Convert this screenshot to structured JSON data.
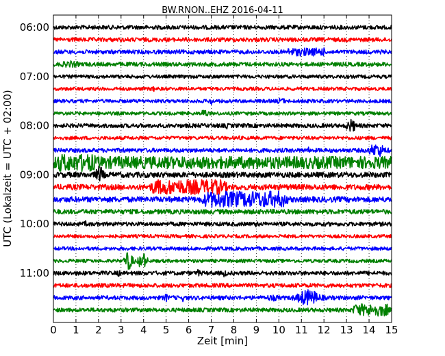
{
  "chart_data": {
    "type": "line",
    "title": "BW.RNON..EHZ 2016-04-11",
    "xlabel": "Zeit  [min]",
    "ylabel": "UTC (Lokalzeit = UTC + 02:00)",
    "xlim": [
      0,
      15
    ],
    "x_ticks": [
      "0",
      "1",
      "2",
      "3",
      "4",
      "5",
      "6",
      "7",
      "8",
      "9",
      "10",
      "11",
      "12",
      "13",
      "14",
      "15"
    ],
    "y_ticks": [
      "06:00",
      "07:00",
      "08:00",
      "09:00",
      "10:00",
      "11:00"
    ],
    "grid": "vertical dotted",
    "trace_color_cycle": [
      "#000000",
      "#ff0000",
      "#0000ff",
      "#008000"
    ],
    "rows": [
      {
        "start": "06:00",
        "base_amp": 3,
        "events": []
      },
      {
        "start": "06:15",
        "base_amp": 3,
        "events": []
      },
      {
        "start": "06:30",
        "base_amp": 3,
        "events": [
          {
            "from": 10.2,
            "to": 12.2,
            "amp": 6
          }
        ]
      },
      {
        "start": "06:45",
        "base_amp": 3,
        "events": [
          {
            "from": 0.0,
            "to": 1.5,
            "amp": 5
          }
        ]
      },
      {
        "start": "07:00",
        "base_amp": 2.5,
        "events": []
      },
      {
        "start": "07:15",
        "base_amp": 2.5,
        "events": [
          {
            "from": 4.2,
            "to": 4.7,
            "amp": 4
          }
        ]
      },
      {
        "start": "07:30",
        "base_amp": 2.5,
        "events": [
          {
            "from": 6.9,
            "to": 7.1,
            "amp": 7
          },
          {
            "from": 9.8,
            "to": 10.4,
            "amp": 5
          },
          {
            "from": 10.9,
            "to": 11.1,
            "amp": 6
          }
        ]
      },
      {
        "start": "07:45",
        "base_amp": 2.5,
        "events": [
          {
            "from": 6.5,
            "to": 6.9,
            "amp": 7
          }
        ]
      },
      {
        "start": "08:00",
        "base_amp": 3,
        "events": [
          {
            "from": 7.6,
            "to": 7.8,
            "amp": 5
          },
          {
            "from": 12.9,
            "to": 13.5,
            "amp": 10
          }
        ]
      },
      {
        "start": "08:15",
        "base_amp": 2.5,
        "events": [
          {
            "from": 8.1,
            "to": 8.3,
            "amp": 5
          }
        ]
      },
      {
        "start": "08:30",
        "base_amp": 3,
        "events": [
          {
            "from": 3.0,
            "to": 3.2,
            "amp": 5
          },
          {
            "from": 11.2,
            "to": 11.4,
            "amp": 5
          },
          {
            "from": 13.8,
            "to": 14.9,
            "amp": 10
          }
        ]
      },
      {
        "start": "08:45",
        "base_amp": 9,
        "events": [
          {
            "from": 0.0,
            "to": 2.0,
            "amp": 13
          },
          {
            "from": 11.2,
            "to": 12.0,
            "amp": 9
          }
        ]
      },
      {
        "start": "09:00",
        "base_amp": 4,
        "events": [
          {
            "from": 1.8,
            "to": 2.3,
            "amp": 13
          }
        ]
      },
      {
        "start": "09:15",
        "base_amp": 4,
        "events": [
          {
            "from": 4.1,
            "to": 7.9,
            "amp": 11
          }
        ]
      },
      {
        "start": "09:30",
        "base_amp": 4,
        "events": [
          {
            "from": 6.4,
            "to": 10.6,
            "amp": 12
          }
        ]
      },
      {
        "start": "09:45",
        "base_amp": 3.5,
        "events": []
      },
      {
        "start": "10:00",
        "base_amp": 3,
        "events": [
          {
            "from": 1.3,
            "to": 1.6,
            "amp": 5
          },
          {
            "from": 8.9,
            "to": 9.1,
            "amp": 5
          }
        ]
      },
      {
        "start": "10:15",
        "base_amp": 2.5,
        "events": [
          {
            "from": 1.8,
            "to": 2.0,
            "amp": 4
          }
        ]
      },
      {
        "start": "10:30",
        "base_amp": 2.5,
        "events": []
      },
      {
        "start": "10:45",
        "base_amp": 2.5,
        "events": [
          {
            "from": 3.1,
            "to": 3.6,
            "amp": 14
          },
          {
            "from": 3.7,
            "to": 4.2,
            "amp": 13
          }
        ]
      },
      {
        "start": "11:00",
        "base_amp": 3,
        "events": [
          {
            "from": 2.8,
            "to": 3.0,
            "amp": 6
          },
          {
            "from": 6.3,
            "to": 6.6,
            "amp": 6
          },
          {
            "from": 7.5,
            "to": 7.7,
            "amp": 7
          }
        ]
      },
      {
        "start": "11:15",
        "base_amp": 3,
        "events": []
      },
      {
        "start": "11:30",
        "base_amp": 3,
        "events": [
          {
            "from": 4.9,
            "to": 5.1,
            "amp": 8
          },
          {
            "from": 5.7,
            "to": 5.8,
            "amp": 6
          },
          {
            "from": 9.2,
            "to": 10.2,
            "amp": 5
          },
          {
            "from": 10.6,
            "to": 12.0,
            "amp": 12
          }
        ]
      },
      {
        "start": "11:45",
        "base_amp": 3,
        "events": [
          {
            "from": 13.2,
            "to": 15.0,
            "amp": 9
          }
        ]
      }
    ]
  }
}
